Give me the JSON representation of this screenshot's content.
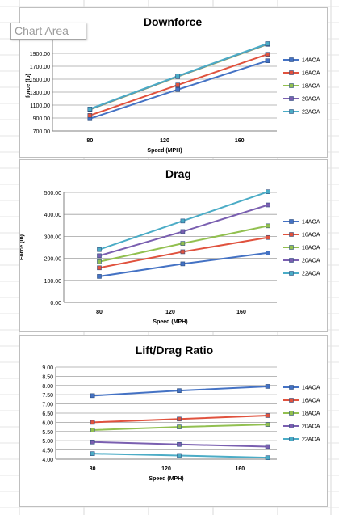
{
  "tooltip": "Chart Area",
  "series_names": [
    "14AOA",
    "16AOA",
    "18AOA",
    "20AOA",
    "22AOA"
  ],
  "series_colors": [
    "#4472c4",
    "#e0523e",
    "#92c050",
    "#7a5fb0",
    "#4bacc6"
  ],
  "chart_data": [
    {
      "type": "line",
      "title": "Downforce",
      "xlabel": "Speed (MPH)",
      "ylabel": "force (lb)",
      "xticks": [
        "80",
        "120",
        "160"
      ],
      "xlim": [
        60,
        180
      ],
      "ylim": [
        700,
        2100
      ],
      "yticks": [
        "700.00",
        "900.00",
        "1100.00",
        "1300.00",
        "1500.00",
        "1700.00",
        "1900.00"
      ],
      "x": [
        80,
        127,
        175
      ],
      "legend": "right",
      "grid": true,
      "series": [
        {
          "name": "14AOA",
          "values": [
            890,
            1340,
            1785
          ]
        },
        {
          "name": "16AOA",
          "values": [
            940,
            1410,
            1885
          ]
        },
        {
          "name": "18AOA",
          "values": [
            1030,
            1540,
            2040
          ]
        },
        {
          "name": "20AOA",
          "values": [
            1035,
            1545,
            2045
          ]
        },
        {
          "name": "22AOA",
          "values": [
            1040,
            1548,
            2050
          ]
        }
      ]
    },
    {
      "type": "line",
      "title": "Drag",
      "xlabel": "Speed (MPH)",
      "ylabel": "Force (lb)",
      "xticks": [
        "80",
        "120",
        "160"
      ],
      "xlim": [
        60,
        180
      ],
      "ylim": [
        0,
        500
      ],
      "yticks": [
        "0.00",
        "100.00",
        "200.00",
        "300.00",
        "400.00",
        "500.00"
      ],
      "x": [
        80,
        127,
        175
      ],
      "legend": "right",
      "grid": true,
      "series": [
        {
          "name": "14AOA",
          "values": [
            118,
            175,
            225
          ]
        },
        {
          "name": "16AOA",
          "values": [
            157,
            230,
            295
          ]
        },
        {
          "name": "18AOA",
          "values": [
            185,
            268,
            348
          ]
        },
        {
          "name": "20AOA",
          "values": [
            212,
            322,
            443
          ]
        },
        {
          "name": "22AOA",
          "values": [
            240,
            370,
            503
          ]
        }
      ]
    },
    {
      "type": "line",
      "title": "Lift/Drag Ratio",
      "xlabel": "Speed (MPH)",
      "ylabel": "",
      "xticks": [
        "80",
        "120",
        "160"
      ],
      "xlim": [
        60,
        180
      ],
      "ylim": [
        4.0,
        9.0
      ],
      "yticks": [
        "4.00",
        "4.50",
        "5.00",
        "5.50",
        "6.00",
        "6.50",
        "7.00",
        "7.50",
        "8.00",
        "8.50",
        "9.00"
      ],
      "x": [
        80,
        127,
        175
      ],
      "legend": "right",
      "grid": true,
      "series": [
        {
          "name": "14AOA",
          "values": [
            7.45,
            7.72,
            7.95
          ]
        },
        {
          "name": "16AOA",
          "values": [
            6.0,
            6.18,
            6.37
          ]
        },
        {
          "name": "18AOA",
          "values": [
            5.58,
            5.75,
            5.88
          ]
        },
        {
          "name": "20AOA",
          "values": [
            4.93,
            4.8,
            4.68
          ]
        },
        {
          "name": "22AOA",
          "values": [
            4.3,
            4.2,
            4.08
          ]
        }
      ]
    }
  ]
}
